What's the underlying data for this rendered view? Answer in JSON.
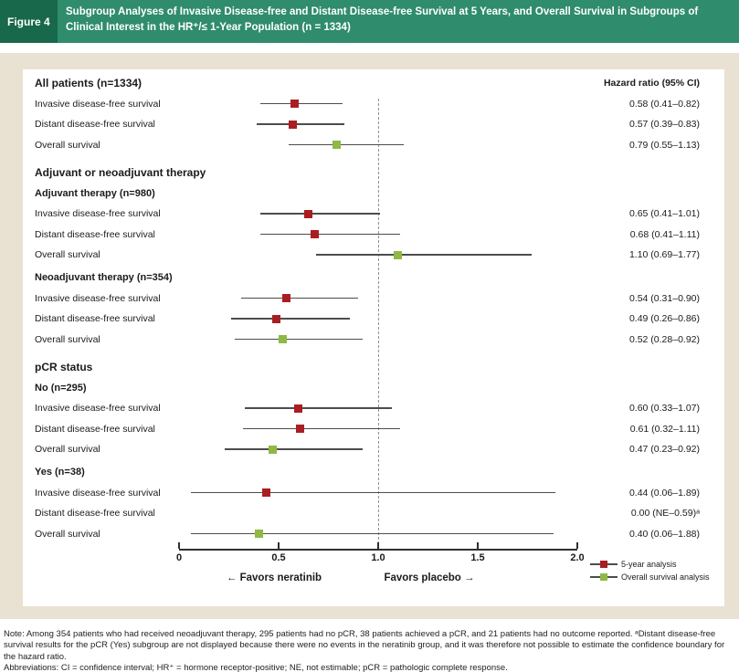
{
  "figure": {
    "label": "Figure 4",
    "title": "Subgroup Analyses of Invasive Disease-free and Distant Disease-free Survival at 5 Years, and Overall Survival in Subgroups of Clinical Interest in the HR⁺/≤ 1-Year Population (n = 1334)"
  },
  "colors": {
    "header_dark": "#18684c",
    "header_green": "#2f8c6c",
    "frame_beige": "#e9e1d1",
    "ci_line": "#4d4d4d",
    "axis": "#2f2f2f",
    "reference_line": "#909090",
    "five_year_red": "#a91e23",
    "overall_survival_green": "#8fb944"
  },
  "chart_data": {
    "type": "forest",
    "value_column_header": "Hazard ratio (95% CI)",
    "x_axis": {
      "min": 0,
      "max": 2.0,
      "reference_line": 1.0,
      "ticks": [
        {
          "value": 0,
          "label": "0"
        },
        {
          "value": 0.5,
          "label": "0.5"
        },
        {
          "value": 1.0,
          "label": "1.0"
        },
        {
          "value": 1.5,
          "label": "1.5"
        },
        {
          "value": 2.0,
          "label": "2.0"
        }
      ]
    },
    "favors_left": "← Favors neratinib",
    "favors_right": "Favors placebo →",
    "legend": [
      {
        "label": "5-year analysis",
        "color": "#a91e23"
      },
      {
        "label": "Overall survival analysis",
        "color": "#8fb944"
      }
    ],
    "rows": [
      {
        "kind": "header",
        "label": "All patients (n=1334)"
      },
      {
        "kind": "data",
        "label": "Invasive disease-free survival",
        "series": "5-year analysis",
        "hr": 0.58,
        "low": 0.41,
        "high": 0.82,
        "text": "0.58 (0.41–0.82)"
      },
      {
        "kind": "data",
        "label": "Distant disease-free survival",
        "series": "5-year analysis",
        "hr": 0.57,
        "low": 0.39,
        "high": 0.83,
        "text": "0.57 (0.39–0.83)"
      },
      {
        "kind": "data",
        "label": "Overall survival",
        "series": "Overall survival analysis",
        "hr": 0.79,
        "low": 0.55,
        "high": 1.13,
        "text": "0.79 (0.55–1.13)"
      },
      {
        "kind": "header",
        "label": "Adjuvant or neoadjuvant therapy"
      },
      {
        "kind": "subheader",
        "label": "Adjuvant therapy (n=980)"
      },
      {
        "kind": "data",
        "label": "Invasive disease-free survival",
        "series": "5-year analysis",
        "hr": 0.65,
        "low": 0.41,
        "high": 1.01,
        "text": "0.65 (0.41–1.01)"
      },
      {
        "kind": "data",
        "label": "Distant disease-free survival",
        "series": "5-year analysis",
        "hr": 0.68,
        "low": 0.41,
        "high": 1.11,
        "text": "0.68 (0.41–1.11)"
      },
      {
        "kind": "data",
        "label": "Overall survival",
        "series": "Overall survival analysis",
        "hr": 1.1,
        "low": 0.69,
        "high": 1.77,
        "text": "1.10 (0.69–1.77)"
      },
      {
        "kind": "subheader",
        "label": "Neoadjuvant therapy (n=354)"
      },
      {
        "kind": "data",
        "label": "Invasive disease-free survival",
        "series": "5-year analysis",
        "hr": 0.54,
        "low": 0.31,
        "high": 0.9,
        "text": "0.54 (0.31–0.90)"
      },
      {
        "kind": "data",
        "label": "Distant disease-free survival",
        "series": "5-year analysis",
        "hr": 0.49,
        "low": 0.26,
        "high": 0.86,
        "text": "0.49 (0.26–0.86)"
      },
      {
        "kind": "data",
        "label": "Overall survival",
        "series": "Overall survival analysis",
        "hr": 0.52,
        "low": 0.28,
        "high": 0.92,
        "text": "0.52 (0.28–0.92)"
      },
      {
        "kind": "header",
        "label": "pCR status"
      },
      {
        "kind": "subheader",
        "label": "No (n=295)"
      },
      {
        "kind": "data",
        "label": "Invasive disease-free survival",
        "series": "5-year analysis",
        "hr": 0.6,
        "low": 0.33,
        "high": 1.07,
        "text": "0.60 (0.33–1.07)"
      },
      {
        "kind": "data",
        "label": "Distant disease-free survival",
        "series": "5-year analysis",
        "hr": 0.61,
        "low": 0.32,
        "high": 1.11,
        "text": "0.61 (0.32–1.11)"
      },
      {
        "kind": "data",
        "label": "Overall survival",
        "series": "Overall survival analysis",
        "hr": 0.47,
        "low": 0.23,
        "high": 0.92,
        "text": "0.47 (0.23–0.92)"
      },
      {
        "kind": "subheader",
        "label": "Yes (n=38)"
      },
      {
        "kind": "data",
        "label": "Invasive disease-free survival",
        "series": "5-year analysis",
        "hr": 0.44,
        "low": 0.06,
        "high": 1.89,
        "text": "0.44 (0.06–1.89)"
      },
      {
        "kind": "data",
        "label": "Distant disease-free survival",
        "series": "5-year analysis",
        "hr": null,
        "low": null,
        "high": null,
        "plotted": false,
        "text": "0.00 (NE–0.59)ᵃ"
      },
      {
        "kind": "data",
        "label": "Overall survival",
        "series": "Overall survival analysis",
        "hr": 0.4,
        "low": 0.06,
        "high": 1.88,
        "text": "0.40 (0.06–1.88)"
      }
    ]
  },
  "footnote": {
    "note": "Note: Among 354 patients who had received neoadjuvant therapy, 295 patients had no pCR, 38 patients achieved a pCR, and 21 patients had no outcome reported. ᵃDistant disease-free survival results for the pCR (Yes) subgroup are not displayed because there were no events in the neratinib group, and it was therefore not possible to estimate the confidence boundary for the hazard ratio.",
    "abbreviations": "Abbreviations: CI = confidence interval; HR⁺ = hormone receptor-positive; NE, not estimable; pCR = pathologic complete response."
  }
}
